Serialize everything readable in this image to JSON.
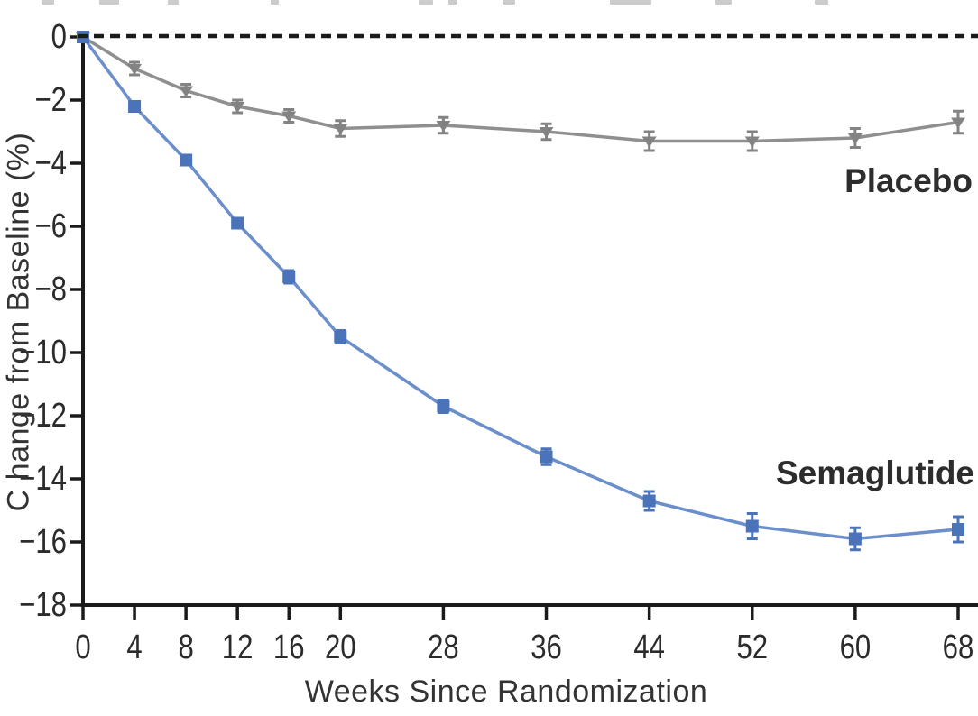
{
  "chart_data": {
    "type": "line",
    "title": "",
    "xlabel": "Weeks Since Randomization",
    "ylabel": "C hange from Baseline (%)",
    "x": [
      0,
      4,
      8,
      12,
      16,
      20,
      28,
      36,
      44,
      52,
      60,
      68
    ],
    "x_tick_labels": [
      "0",
      "4",
      "8",
      "12",
      "16",
      "20",
      "28",
      "36",
      "44",
      "52",
      "60",
      "68"
    ],
    "y_ticks": [
      0,
      -2,
      -4,
      -6,
      -8,
      -10,
      -12,
      -14,
      -16,
      -18
    ],
    "y_tick_labels": [
      "0",
      "−2",
      "−4",
      "−6",
      "−8",
      "−10",
      "−12",
      "−14",
      "−16",
      "−18"
    ],
    "xlim": [
      0,
      68
    ],
    "ylim": [
      -18,
      0
    ],
    "grid": false,
    "legend_position": "inline-right-of-lines",
    "baseline": {
      "value": 0,
      "style": "dashed",
      "color": "#1a1a1a"
    },
    "axis_color": "#1a1a1a",
    "tick_label_color": "#2b2b2b",
    "series": [
      {
        "name": "Placebo",
        "marker": "triangle-down",
        "line_color": "#8f8f8f",
        "marker_color": "#838383",
        "values": [
          0,
          -1.0,
          -1.7,
          -2.2,
          -2.5,
          -2.9,
          -2.8,
          -3.0,
          -3.3,
          -3.3,
          -3.2,
          -2.7
        ],
        "errors": [
          0,
          0.2,
          0.2,
          0.2,
          0.2,
          0.25,
          0.25,
          0.25,
          0.3,
          0.3,
          0.3,
          0.35
        ]
      },
      {
        "name": "Semaglutide",
        "marker": "square",
        "line_color": "#6b8fca",
        "marker_color": "#4a73b9",
        "values": [
          0,
          -2.2,
          -3.9,
          -5.9,
          -7.6,
          -9.5,
          -11.7,
          -13.3,
          -14.7,
          -15.5,
          -15.9,
          -15.6
        ],
        "errors": [
          0,
          0.15,
          0.15,
          0.15,
          0.2,
          0.2,
          0.2,
          0.25,
          0.3,
          0.4,
          0.35,
          0.4
        ]
      }
    ]
  }
}
